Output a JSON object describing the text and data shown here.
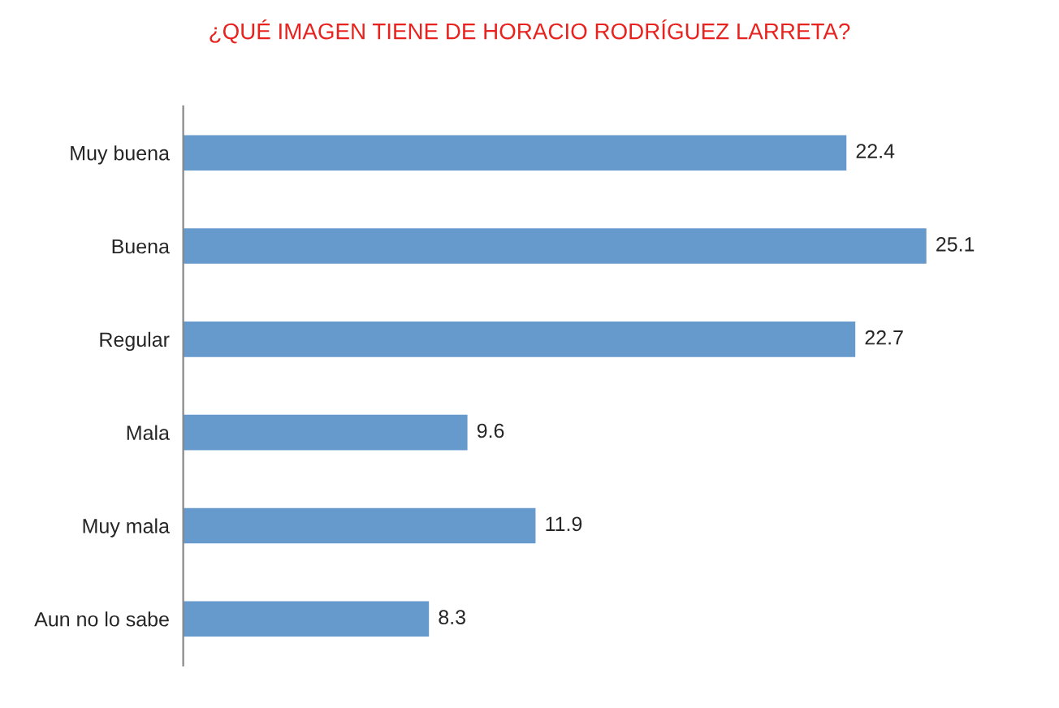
{
  "chart_data": {
    "type": "bar",
    "orientation": "horizontal",
    "title": "¿QUÉ IMAGEN TIENE DE HORACIO RODRÍGUEZ LARRETA?",
    "categories": [
      "Muy buena",
      "Buena",
      "Regular",
      "Mala",
      "Muy mala",
      "Aun no lo sabe"
    ],
    "values": [
      22.4,
      25.1,
      22.7,
      9.6,
      11.9,
      8.3
    ],
    "color": "#6699cc",
    "data_labels": true,
    "grid": false,
    "legend": false,
    "tick_labels": "y"
  }
}
